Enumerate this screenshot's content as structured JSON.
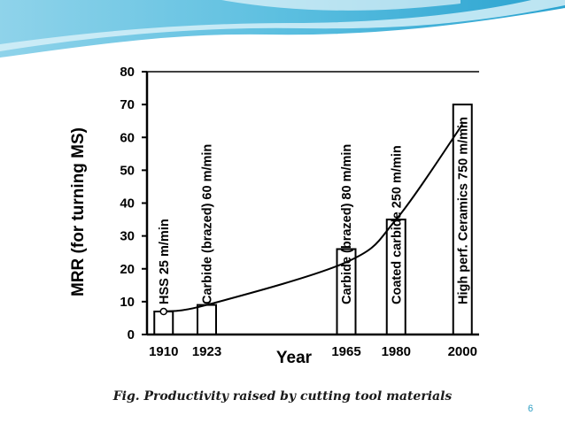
{
  "slide": {
    "caption": "Fig. Productivity raised by cutting tool materials",
    "slide_number": "6",
    "accent_color": "#2f9fc4"
  },
  "chart_data": {
    "type": "bar",
    "title": "",
    "xlabel": "Year",
    "ylabel": "MRR (for turning MS)",
    "ylim": [
      0,
      80
    ],
    "yticks": [
      0,
      10,
      20,
      30,
      40,
      50,
      60,
      70,
      80
    ],
    "grid": false,
    "legend": "none",
    "categories": [
      "1910",
      "1923",
      "1965",
      "1980",
      "2000"
    ],
    "values": [
      7,
      9,
      26,
      35,
      70
    ],
    "bar_labels": [
      "HSS  25 m/min",
      "Carbide (brazed)  60 m/min",
      "Carbide (brazed) 80 m/min",
      "Coated carbide  250 m/min",
      "High perf. Ceramics  750 m/min"
    ],
    "trend_line": {
      "type": "curve",
      "x": [
        "1910",
        "1923",
        "1965",
        "1980",
        "2000"
      ],
      "y": [
        7,
        9,
        22,
        35,
        64
      ]
    }
  }
}
